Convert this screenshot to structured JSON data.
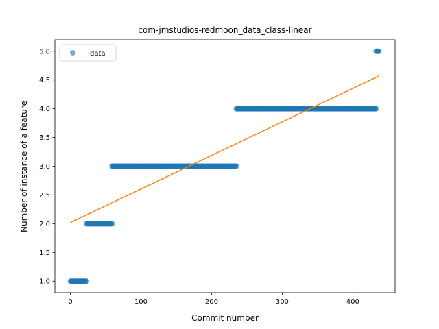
{
  "chart_data": {
    "type": "scatter",
    "title": "com-jmstudios-redmoon_data_class-linear",
    "xlabel": "Commit number",
    "ylabel": "Number of instance of a feature",
    "xlim": [
      -21.9,
      459.9
    ],
    "ylim": [
      0.8,
      5.2
    ],
    "xticks": [
      0,
      100,
      200,
      300,
      400
    ],
    "yticks": [
      1.0,
      1.5,
      2.0,
      2.5,
      3.0,
      3.5,
      4.0,
      4.5,
      5.0
    ],
    "ytick_labels": [
      "1.0",
      "1.5",
      "2.0",
      "2.5",
      "3.0",
      "3.5",
      "4.0",
      "4.5",
      "5.0"
    ],
    "legend": {
      "position": "top-left",
      "entries": [
        "data"
      ]
    },
    "colors": {
      "data": "#1f77b4",
      "fit": "#ff7f0e"
    },
    "series": [
      {
        "name": "data",
        "kind": "points",
        "segments": [
          {
            "x_start": 0,
            "x_end": 23,
            "y": 1.0
          },
          {
            "x_start": 23,
            "x_end": 59,
            "y": 2.0
          },
          {
            "x_start": 59,
            "x_end": 235,
            "y": 3.0
          },
          {
            "x_start": 235,
            "x_end": 433,
            "y": 4.0
          },
          {
            "x_start": 433,
            "x_end": 437,
            "y": 5.0
          }
        ]
      },
      {
        "kind": "line",
        "x": [
          0,
          437
        ],
        "y": [
          2.02,
          4.57
        ]
      }
    ]
  }
}
